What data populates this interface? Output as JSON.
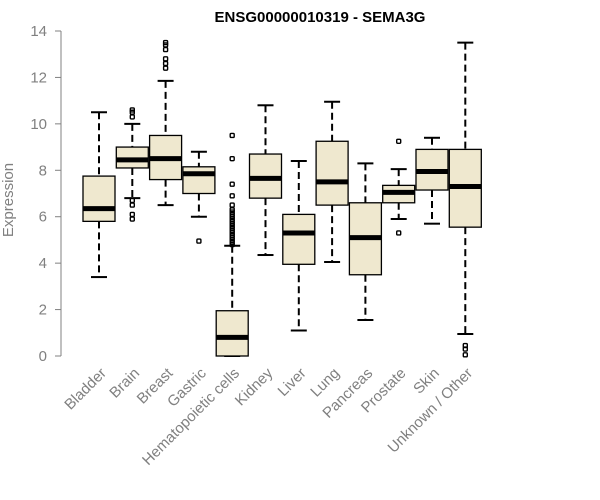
{
  "chart_data": {
    "type": "boxplot",
    "title": "ENSG00000010319 - SEMA3G",
    "xlabel": "",
    "ylabel": "Expression",
    "ylim": [
      0,
      14
    ],
    "yticks": [
      0,
      2,
      4,
      6,
      8,
      10,
      12,
      14
    ],
    "grid": false,
    "box_color": "#efe8cf",
    "categories": [
      "Bladder",
      "Brain",
      "Breast",
      "Gastric",
      "Hematopoietic cells",
      "Kidney",
      "Liver",
      "Lung",
      "Pancreas",
      "Prostate",
      "Skin",
      "Unknown / Other"
    ],
    "boxes": [
      {
        "name": "Bladder",
        "whisker_low": 3.4,
        "q1": 5.8,
        "median": 6.35,
        "q3": 7.75,
        "whisker_high": 10.5,
        "outliers": []
      },
      {
        "name": "Brain",
        "whisker_low": 6.8,
        "q1": 8.1,
        "median": 8.45,
        "q3": 9.0,
        "whisker_high": 10.0,
        "outliers": [
          5.9,
          6.1,
          6.5,
          6.7,
          10.3,
          10.5,
          10.6
        ]
      },
      {
        "name": "Breast",
        "whisker_low": 6.5,
        "q1": 7.6,
        "median": 8.5,
        "q3": 9.5,
        "whisker_high": 11.85,
        "outliers": [
          12.4,
          12.6,
          12.8,
          13.2,
          13.4,
          13.5
        ]
      },
      {
        "name": "Gastric",
        "whisker_low": 6.0,
        "q1": 7.0,
        "median": 7.85,
        "q3": 8.15,
        "whisker_high": 8.8,
        "outliers": [
          4.95
        ]
      },
      {
        "name": "Hematopoietic cells",
        "whisker_low": 0.0,
        "q1": 0.0,
        "median": 0.8,
        "q3": 1.95,
        "whisker_high": 4.75,
        "outliers": [
          4.8,
          4.9,
          5.0,
          5.1,
          5.2,
          5.3,
          5.4,
          5.5,
          5.6,
          5.7,
          5.8,
          5.9,
          6.0,
          6.1,
          6.2,
          6.3,
          6.5,
          6.9,
          7.4,
          8.5,
          9.5
        ]
      },
      {
        "name": "Kidney",
        "whisker_low": 4.35,
        "q1": 6.8,
        "median": 7.65,
        "q3": 8.7,
        "whisker_high": 10.8,
        "outliers": []
      },
      {
        "name": "Liver",
        "whisker_low": 1.1,
        "q1": 3.95,
        "median": 5.3,
        "q3": 6.1,
        "whisker_high": 8.4,
        "outliers": []
      },
      {
        "name": "Lung",
        "whisker_low": 4.05,
        "q1": 6.5,
        "median": 7.5,
        "q3": 9.25,
        "whisker_high": 10.95,
        "outliers": []
      },
      {
        "name": "Pancreas",
        "whisker_low": 1.55,
        "q1": 3.5,
        "median": 5.1,
        "q3": 6.6,
        "whisker_high": 8.3,
        "outliers": []
      },
      {
        "name": "Prostate",
        "whisker_low": 5.9,
        "q1": 6.6,
        "median": 7.05,
        "q3": 7.35,
        "whisker_high": 8.05,
        "outliers": [
          5.3,
          9.25
        ]
      },
      {
        "name": "Skin",
        "whisker_low": 5.7,
        "q1": 7.15,
        "median": 7.95,
        "q3": 8.9,
        "whisker_high": 9.4,
        "outliers": []
      },
      {
        "name": "Unknown / Other",
        "whisker_low": 0.95,
        "q1": 5.55,
        "median": 7.3,
        "q3": 8.9,
        "whisker_high": 13.5,
        "outliers": [
          0.05,
          0.3,
          0.45
        ]
      }
    ]
  }
}
